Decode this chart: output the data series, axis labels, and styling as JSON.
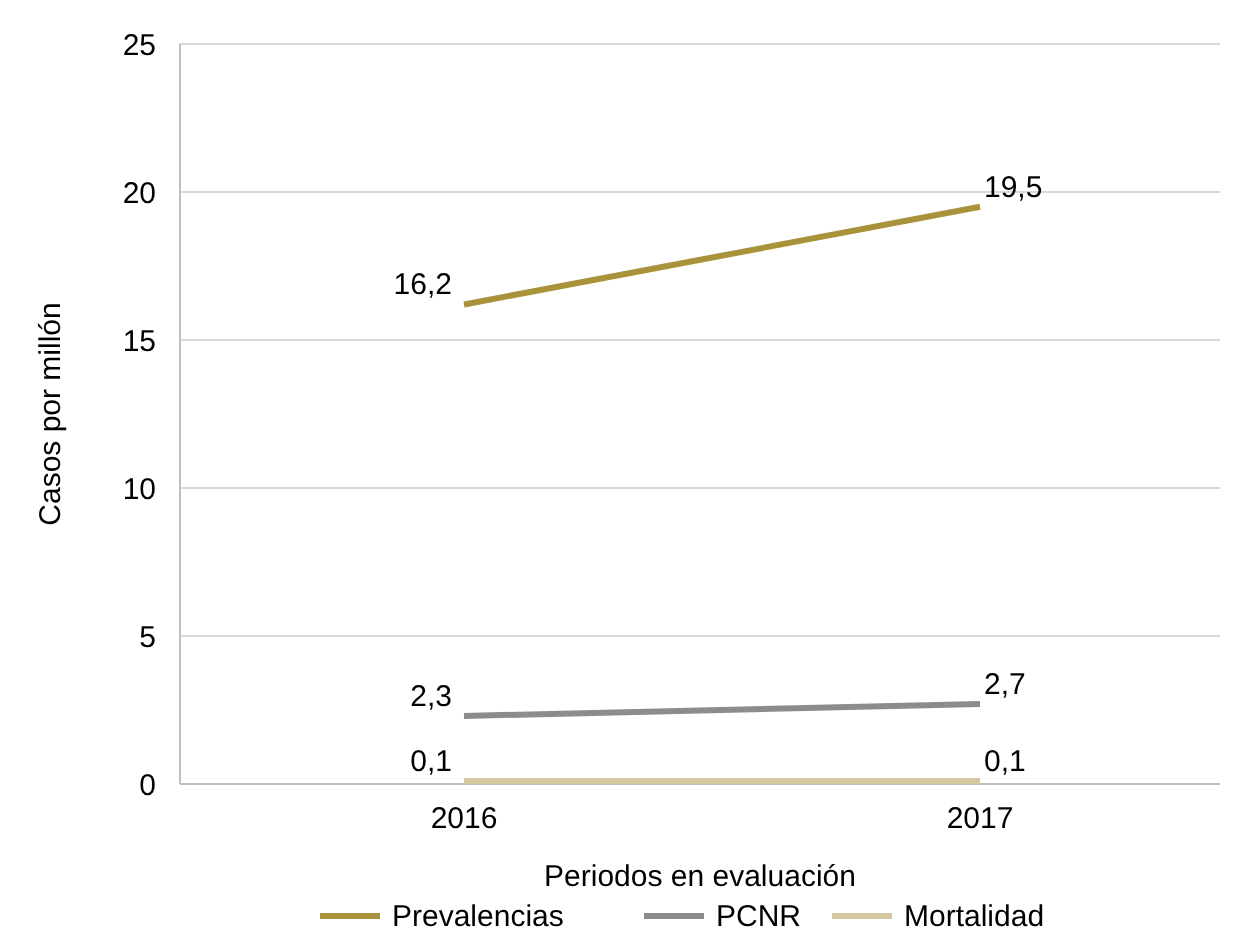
{
  "chart_data": {
    "type": "line",
    "xlabel": "Periodos en evaluación",
    "ylabel": "Casos por millón",
    "categories": [
      "2016",
      "2017"
    ],
    "series": [
      {
        "name": "Prevalencias",
        "color": "#a8923a",
        "values": [
          16.2,
          19.5
        ],
        "value_labels": [
          "16,2",
          "19,5"
        ]
      },
      {
        "name": "PCNR",
        "color": "#8c8c8c",
        "values": [
          2.3,
          2.7
        ],
        "value_labels": [
          "2,3",
          "2,7"
        ]
      },
      {
        "name": "Mortalidad",
        "color": "#d5c7a1",
        "values": [
          0.1,
          0.1
        ],
        "value_labels": [
          "0,1",
          "0,1"
        ]
      }
    ],
    "ylim": [
      0,
      25
    ],
    "yticks": [
      0,
      5,
      10,
      15,
      20,
      25
    ],
    "grid": "y",
    "legend": "bottom",
    "marker": "none",
    "line_style": "solid"
  }
}
